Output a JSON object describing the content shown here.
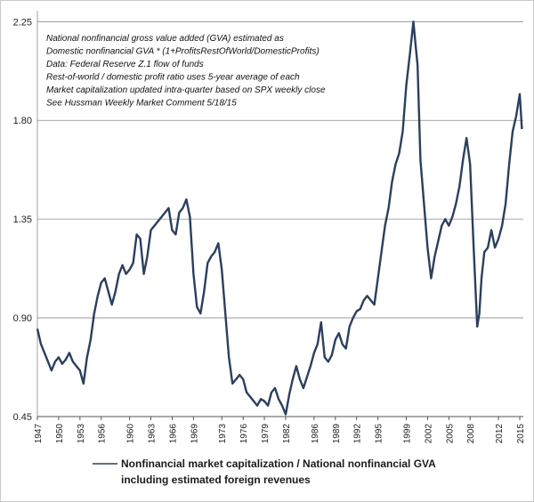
{
  "chart_data": {
    "type": "line",
    "title": "",
    "xlabel": "",
    "ylabel": "",
    "xlim": [
      1947,
      2015.5
    ],
    "ylim": [
      0.45,
      2.3
    ],
    "grid": "horizontal",
    "yticks": [
      "0.45",
      "0.90",
      "1.35",
      "1.80",
      "2.25"
    ],
    "xticks": [
      "1947",
      "1950",
      "1953",
      "1956",
      "1960",
      "1963",
      "1966",
      "1969",
      "1973",
      "1976",
      "1979",
      "1982",
      "1986",
      "1989",
      "1992",
      "1995",
      "1999",
      "2002",
      "2005",
      "2008",
      "2012",
      "2015"
    ],
    "notes": [
      "National nonfinancial gross value added (GVA) estimated as",
      "Domestic nonfinancial GVA  * (1+ProfitsRestOfWorld/DomesticProfits)",
      "Data: Federal Reserve Z.1 flow of funds",
      "Rest-of-world  / domestic profit ratio uses 5-year average of each",
      "Market capitalization updated intra-quarter based on SPX weekly close",
      "See Hussman Weekly Market Comment 5/18/15"
    ],
    "legend": {
      "position": "bottom",
      "line1": "Nonfinancial market capitalization / National nonfinancial GVA",
      "line2": "including estimated foreign revenues"
    },
    "series": [
      {
        "color": "#2b3f5e",
        "x": [
          1947.0,
          1947.5,
          1948.0,
          1948.5,
          1949.0,
          1949.5,
          1950.0,
          1950.5,
          1951.0,
          1951.5,
          1952.0,
          1952.5,
          1953.0,
          1953.5,
          1954.0,
          1954.5,
          1955.0,
          1955.5,
          1956.0,
          1956.5,
          1957.0,
          1957.5,
          1958.0,
          1958.5,
          1959.0,
          1959.5,
          1960.0,
          1960.5,
          1961.0,
          1961.5,
          1962.0,
          1962.5,
          1963.0,
          1963.5,
          1964.0,
          1964.5,
          1965.0,
          1965.5,
          1966.0,
          1966.5,
          1967.0,
          1967.5,
          1968.0,
          1968.5,
          1969.0,
          1969.5,
          1970.0,
          1970.5,
          1971.0,
          1971.5,
          1972.0,
          1972.5,
          1973.0,
          1973.5,
          1974.0,
          1974.5,
          1975.0,
          1975.5,
          1976.0,
          1976.5,
          1977.0,
          1977.5,
          1978.0,
          1978.5,
          1979.0,
          1979.5,
          1980.0,
          1980.5,
          1981.0,
          1981.5,
          1982.0,
          1982.5,
          1983.0,
          1983.5,
          1984.0,
          1984.5,
          1985.0,
          1985.5,
          1986.0,
          1986.5,
          1987.0,
          1987.5,
          1988.0,
          1988.5,
          1989.0,
          1989.5,
          1990.0,
          1990.5,
          1991.0,
          1991.5,
          1992.0,
          1992.5,
          1993.0,
          1993.5,
          1994.0,
          1994.5,
          1995.0,
          1995.5,
          1996.0,
          1996.5,
          1997.0,
          1997.5,
          1998.0,
          1998.5,
          1999.0,
          1999.5,
          2000.0,
          2000.3,
          2000.6,
          2001.0,
          2001.5,
          2002.0,
          2002.5,
          2003.0,
          2003.5,
          2004.0,
          2004.5,
          2005.0,
          2005.5,
          2006.0,
          2006.5,
          2007.0,
          2007.5,
          2008.0,
          2008.5,
          2009.0,
          2009.3,
          2009.6,
          2010.0,
          2010.5,
          2011.0,
          2011.5,
          2012.0,
          2012.5,
          2013.0,
          2013.5,
          2014.0,
          2014.5,
          2015.0,
          2015.3
        ],
        "values": [
          0.85,
          0.78,
          0.74,
          0.7,
          0.66,
          0.7,
          0.72,
          0.69,
          0.71,
          0.74,
          0.7,
          0.68,
          0.66,
          0.6,
          0.72,
          0.8,
          0.92,
          1.0,
          1.06,
          1.08,
          1.02,
          0.96,
          1.02,
          1.1,
          1.14,
          1.1,
          1.12,
          1.15,
          1.28,
          1.26,
          1.1,
          1.18,
          1.3,
          1.32,
          1.34,
          1.36,
          1.38,
          1.4,
          1.3,
          1.28,
          1.38,
          1.4,
          1.44,
          1.36,
          1.1,
          0.95,
          0.92,
          1.02,
          1.15,
          1.18,
          1.2,
          1.24,
          1.12,
          0.92,
          0.72,
          0.6,
          0.62,
          0.64,
          0.62,
          0.56,
          0.54,
          0.52,
          0.5,
          0.53,
          0.52,
          0.5,
          0.56,
          0.58,
          0.53,
          0.5,
          0.46,
          0.55,
          0.62,
          0.68,
          0.62,
          0.58,
          0.63,
          0.68,
          0.74,
          0.78,
          0.88,
          0.72,
          0.7,
          0.73,
          0.8,
          0.83,
          0.78,
          0.76,
          0.86,
          0.9,
          0.93,
          0.94,
          0.98,
          1.0,
          0.98,
          0.96,
          1.08,
          1.2,
          1.32,
          1.4,
          1.52,
          1.6,
          1.65,
          1.75,
          1.96,
          2.1,
          2.25,
          2.15,
          2.05,
          1.62,
          1.42,
          1.22,
          1.08,
          1.18,
          1.25,
          1.32,
          1.35,
          1.32,
          1.36,
          1.42,
          1.5,
          1.62,
          1.72,
          1.6,
          1.22,
          0.86,
          0.92,
          1.08,
          1.2,
          1.22,
          1.3,
          1.22,
          1.26,
          1.32,
          1.42,
          1.6,
          1.75,
          1.82,
          1.92,
          1.76
        ]
      }
    ]
  }
}
